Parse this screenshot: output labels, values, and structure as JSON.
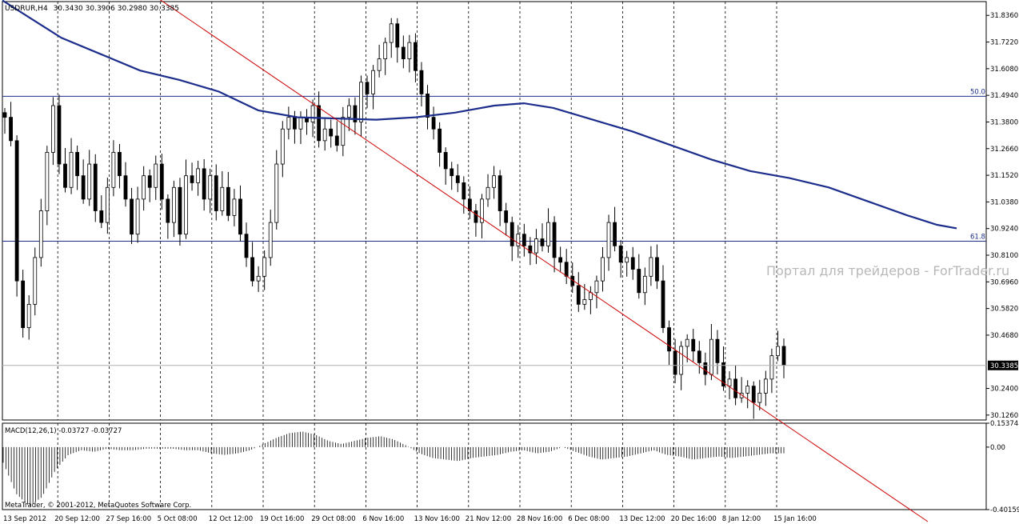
{
  "header": {
    "symbol": "USDRUR,H4",
    "ohlc": "30.3430 30.3906 30.2980 30.3385"
  },
  "watermark": "Портал для трейдеров - ForTrader.ru",
  "copyright": "MetaTrader, © 2001-2012, MetaQuotes Software Corp.",
  "chart_data": {
    "type": "candlestick",
    "ylim": [
      30.105,
      31.895
    ],
    "y_ticks": [
      "31.8360",
      "31.7220",
      "31.6080",
      "31.4940",
      "31.3800",
      "31.2660",
      "31.1520",
      "31.0380",
      "30.9240",
      "30.8100",
      "30.6960",
      "30.5820",
      "30.4680",
      "30.3385",
      "30.2400",
      "30.1260"
    ],
    "x_labels": [
      "13 Sep 2012",
      "20 Sep 12:00",
      "27 Sep 16:00",
      "5 Oct 08:00",
      "12 Oct 12:00",
      "19 Oct 16:00",
      "29 Oct 08:00",
      "6 Nov 16:00",
      "13 Nov 16:00",
      "21 Nov 12:00",
      "28 Nov 16:00",
      "6 Dec 08:00",
      "13 Dec 12:00",
      "20 Dec 16:00",
      "8 Jan 12:00",
      "15 Jan 16:00"
    ],
    "last_price": "30.3385",
    "current_price": 30.3385,
    "fib_levels": [
      {
        "label": "50.0",
        "price": 31.49
      },
      {
        "label": "61.8",
        "price": 30.87
      }
    ],
    "trendline": {
      "from": [
        "13 Sep 2012",
        32.35
      ],
      "to": [
        "15 Jan 16:00",
        30.11
      ]
    },
    "close": [
      31.4,
      31.3,
      30.7,
      30.5,
      30.6,
      30.8,
      31.0,
      31.25,
      31.45,
      31.2,
      31.1,
      31.25,
      31.15,
      31.05,
      31.2,
      31.0,
      30.95,
      31.1,
      31.25,
      31.15,
      31.05,
      30.9,
      31.05,
      31.15,
      31.1,
      31.2,
      31.05,
      30.95,
      31.1,
      30.9,
      31.15,
      31.12,
      31.18,
      31.05,
      31.15,
      31.0,
      31.1,
      30.98,
      31.05,
      30.9,
      30.8,
      30.7,
      30.72,
      30.8,
      30.95,
      31.2,
      31.35,
      31.4,
      31.35,
      31.4,
      31.38,
      31.45,
      31.3,
      31.35,
      31.32,
      31.28,
      31.4,
      31.45,
      31.38,
      31.55,
      31.5,
      31.6,
      31.65,
      31.72,
      31.8,
      31.7,
      31.65,
      31.72,
      31.6,
      31.5,
      31.4,
      31.35,
      31.25,
      31.18,
      31.15,
      31.12,
      31.05,
      31.0,
      30.95,
      31.05,
      31.1,
      31.15,
      31.0,
      30.95,
      30.85,
      30.9,
      30.85,
      30.82,
      30.88,
      30.85,
      30.95,
      30.8,
      30.78,
      30.72,
      30.68,
      30.6,
      30.62,
      30.65,
      30.7,
      30.8,
      30.95,
      30.85,
      30.78,
      30.8,
      30.75,
      30.65,
      30.72,
      30.8,
      30.7,
      30.5,
      30.4,
      30.3,
      30.42,
      30.45,
      30.4,
      30.35,
      30.3,
      30.45,
      30.35,
      30.25,
      30.28,
      30.2,
      30.22,
      30.25,
      30.18,
      30.22,
      30.28,
      30.38,
      30.42,
      30.34
    ],
    "ma": [
      [
        0,
        31.9
      ],
      [
        0.03,
        31.82
      ],
      [
        0.06,
        31.74
      ],
      [
        0.1,
        31.67
      ],
      [
        0.14,
        31.6
      ],
      [
        0.18,
        31.56
      ],
      [
        0.22,
        31.51
      ],
      [
        0.26,
        31.43
      ],
      [
        0.3,
        31.4
      ],
      [
        0.34,
        31.395
      ],
      [
        0.38,
        31.39
      ],
      [
        0.42,
        31.4
      ],
      [
        0.46,
        31.42
      ],
      [
        0.5,
        31.45
      ],
      [
        0.53,
        31.46
      ],
      [
        0.56,
        31.44
      ],
      [
        0.6,
        31.39
      ],
      [
        0.64,
        31.34
      ],
      [
        0.68,
        31.28
      ],
      [
        0.72,
        31.22
      ],
      [
        0.76,
        31.17
      ],
      [
        0.8,
        31.14
      ],
      [
        0.84,
        31.1
      ],
      [
        0.88,
        31.04
      ],
      [
        0.92,
        30.98
      ],
      [
        0.95,
        30.94
      ],
      [
        0.97,
        30.925
      ]
    ],
    "macd_label": "MACD(12,26,1) -0.03727 -0.03727",
    "macd_ticks": [
      "0.15374",
      "0.00",
      "-0.40159"
    ],
    "macd_ylim": [
      -0.40159,
      0.15374
    ],
    "macd": [
      -0.1,
      -0.3,
      -0.38,
      -0.32,
      -0.15,
      -0.05,
      -0.02,
      -0.03,
      -0.01,
      -0.02,
      -0.02,
      -0.01,
      -0.01,
      -0.01,
      -0.02,
      -0.02,
      -0.04,
      -0.05,
      -0.04,
      -0.02,
      0.02,
      0.06,
      0.09,
      0.1,
      0.08,
      0.04,
      0.02,
      0.04,
      0.06,
      0.07,
      0.05,
      0.01,
      -0.04,
      -0.07,
      -0.08,
      -0.09,
      -0.07,
      -0.06,
      -0.05,
      -0.03,
      -0.02,
      -0.04,
      -0.03,
      0.0,
      -0.03,
      -0.06,
      -0.08,
      -0.07,
      -0.06,
      -0.04,
      -0.02,
      -0.05,
      -0.06,
      -0.08,
      -0.07,
      -0.06,
      -0.07,
      -0.06,
      -0.05,
      -0.04,
      -0.04
    ]
  }
}
